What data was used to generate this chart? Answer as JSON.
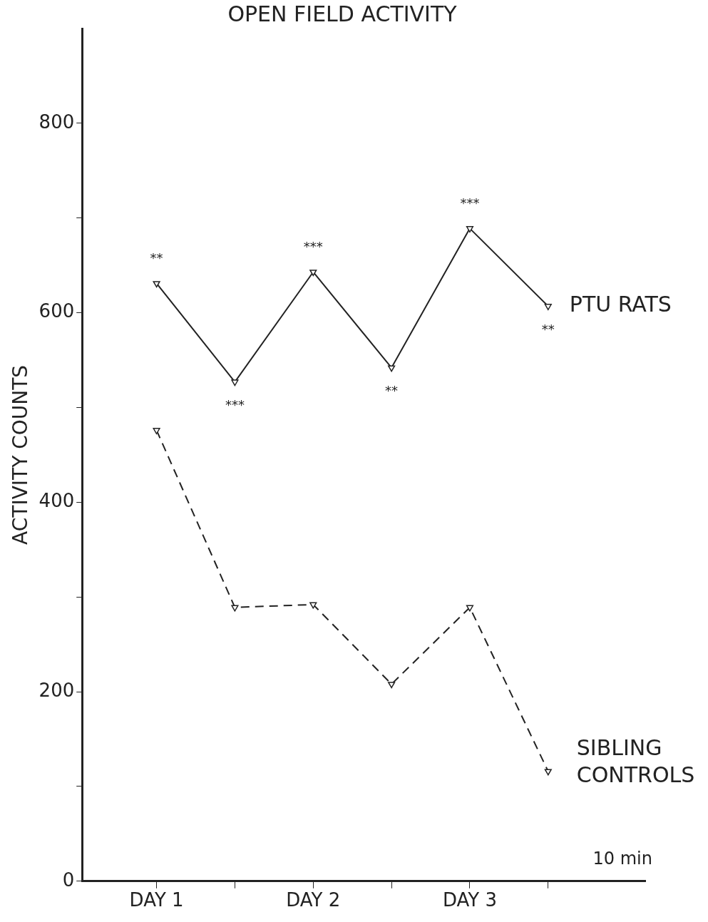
{
  "chart_data": {
    "type": "line",
    "title": "OPEN FIELD ACTIVITY",
    "ylabel": "ACTIVITY COUNTS",
    "categories": [
      "DAY 1",
      null,
      "DAY 2",
      null,
      "DAY 3",
      null
    ],
    "series": [
      {
        "name": "PTU RATS",
        "color": "#222222",
        "values": [
          631,
          527,
          643,
          542,
          689,
          607
        ],
        "line_style": "solid"
      },
      {
        "name": "SIBLING CONTROLS",
        "color": "#222222",
        "values": [
          476,
          289,
          292,
          208,
          289,
          116
        ],
        "line_style": "dashed"
      }
    ],
    "ylim": [
      0,
      900
    ],
    "yticks": [
      0,
      {
        "value": 100,
        "label": null
      },
      200,
      {
        "value": 300,
        "label": null
      },
      400,
      {
        "value": 500,
        "label": null
      },
      600,
      {
        "value": 700,
        "label": null
      },
      800
    ],
    "annotations": [
      "**",
      "***",
      "***",
      "**",
      "***",
      "**",
      "10 min"
    ],
    "marker": "triangle",
    "grid": false,
    "legend": false
  }
}
